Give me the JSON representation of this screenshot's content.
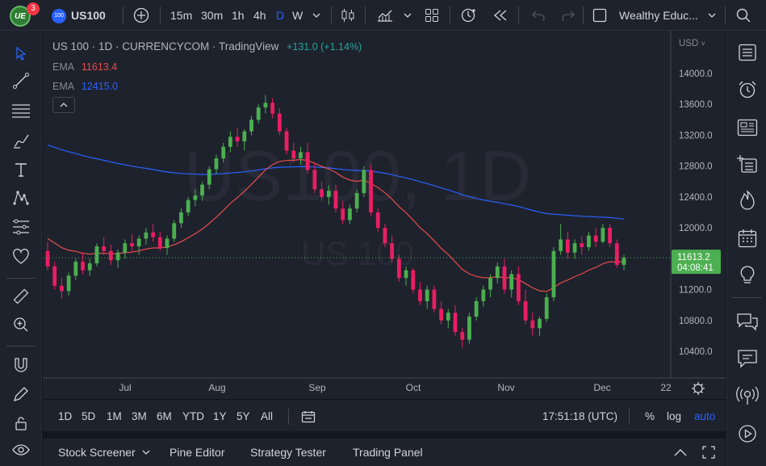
{
  "header": {
    "logo_text": "UE",
    "notification_count": "3",
    "symbol_badge": "100",
    "symbol": "US100",
    "intervals": [
      "15m",
      "30m",
      "1h",
      "4h",
      "D",
      "W"
    ],
    "active_interval": "D",
    "layout_name": "Wealthy Educ..."
  },
  "legend": {
    "title": "US 100 · 1D · CURRENCYCOM · TradingView",
    "change": "+131.0 (+1.14%)",
    "ema1_label": "EMA",
    "ema1_value": "11613.4",
    "ema2_label": "EMA",
    "ema2_value": "12415.0"
  },
  "watermark": {
    "big": "US100, 1D",
    "small": "US 100"
  },
  "price_axis": {
    "currency": "USD",
    "ticks": [
      "14000.0",
      "13600.0",
      "13200.0",
      "12800.0",
      "12400.0",
      "12000.0",
      "11200.0",
      "10800.0",
      "10400.0"
    ],
    "current_price": "11613.2",
    "countdown": "04:08:41"
  },
  "time_axis": {
    "ticks": [
      "Jul",
      "Aug",
      "Sep",
      "Oct",
      "Nov",
      "Dec",
      "22"
    ]
  },
  "bottom_bar": {
    "ranges": [
      "1D",
      "5D",
      "1M",
      "3M",
      "6M",
      "YTD",
      "1Y",
      "5Y",
      "All"
    ],
    "clock": "17:51:18 (UTC)",
    "percent": "%",
    "log": "log",
    "auto": "auto"
  },
  "panel_tabs": [
    "Stock Screener",
    "Pine Editor",
    "Strategy Tester",
    "Trading Panel"
  ],
  "colors": {
    "up": "#26a69a",
    "down": "#ef5350",
    "up_candle": "#4caf50",
    "down_candle": "#e91e63",
    "ema_fast": "#e84c4c",
    "ema_slow": "#2962ff",
    "accent": "#2962ff",
    "price_label": "#4caf50"
  },
  "chart_data": {
    "type": "candlestick",
    "symbol": "US 100",
    "interval": "1D",
    "ylim": [
      10000,
      14400
    ],
    "ema_fast_last": 11613.4,
    "ema_slow_last": 12415.0,
    "last_price": 11613.2,
    "candles": [
      [
        11700,
        11820,
        11450,
        11500
      ],
      [
        11500,
        11560,
        11200,
        11250
      ],
      [
        11250,
        11350,
        11080,
        11180
      ],
      [
        11180,
        11420,
        11120,
        11380
      ],
      [
        11380,
        11600,
        11320,
        11560
      ],
      [
        11560,
        11680,
        11400,
        11450
      ],
      [
        11450,
        11600,
        11380,
        11540
      ],
      [
        11540,
        11800,
        11500,
        11760
      ],
      [
        11760,
        11880,
        11650,
        11700
      ],
      [
        11700,
        11780,
        11520,
        11580
      ],
      [
        11580,
        11720,
        11480,
        11680
      ],
      [
        11680,
        11850,
        11600,
        11800
      ],
      [
        11800,
        11920,
        11700,
        11760
      ],
      [
        11760,
        11900,
        11650,
        11860
      ],
      [
        11860,
        12000,
        11780,
        11940
      ],
      [
        11940,
        12050,
        11820,
        11880
      ],
      [
        11880,
        11950,
        11700,
        11740
      ],
      [
        11740,
        11900,
        11650,
        11860
      ],
      [
        11860,
        12100,
        11820,
        12060
      ],
      [
        12060,
        12250,
        12000,
        12200
      ],
      [
        12200,
        12400,
        12150,
        12360
      ],
      [
        12360,
        12500,
        12280,
        12420
      ],
      [
        12420,
        12600,
        12350,
        12560
      ],
      [
        12560,
        12800,
        12500,
        12760
      ],
      [
        12760,
        12950,
        12700,
        12900
      ],
      [
        12900,
        13100,
        12850,
        13050
      ],
      [
        13050,
        13250,
        12980,
        13180
      ],
      [
        13180,
        13300,
        13050,
        13120
      ],
      [
        13120,
        13280,
        13000,
        13250
      ],
      [
        13250,
        13450,
        13200,
        13400
      ],
      [
        13400,
        13600,
        13350,
        13560
      ],
      [
        13560,
        13720,
        13480,
        13620
      ],
      [
        13620,
        13680,
        13420,
        13480
      ],
      [
        13480,
        13550,
        13200,
        13250
      ],
      [
        13250,
        13300,
        12950,
        13000
      ],
      [
        13000,
        13100,
        12850,
        12900
      ],
      [
        12900,
        13050,
        12820,
        12980
      ],
      [
        12980,
        13100,
        12700,
        12750
      ],
      [
        12750,
        12850,
        12450,
        12500
      ],
      [
        12500,
        12600,
        12350,
        12400
      ],
      [
        12400,
        12550,
        12300,
        12480
      ],
      [
        12480,
        12560,
        12200,
        12250
      ],
      [
        12250,
        12350,
        12050,
        12100
      ],
      [
        12100,
        12300,
        12050,
        12250
      ],
      [
        12250,
        12500,
        12200,
        12450
      ],
      [
        12450,
        12800,
        12400,
        12750
      ],
      [
        12750,
        12820,
        12150,
        12200
      ],
      [
        12200,
        12250,
        11950,
        12000
      ],
      [
        12000,
        12050,
        11750,
        11800
      ],
      [
        11800,
        11900,
        11550,
        11600
      ],
      [
        11600,
        11650,
        11300,
        11350
      ],
      [
        11350,
        11500,
        11250,
        11450
      ],
      [
        11450,
        11480,
        11150,
        11200
      ],
      [
        11200,
        11300,
        11000,
        11050
      ],
      [
        11050,
        11250,
        10950,
        11200
      ],
      [
        11200,
        11250,
        10900,
        10950
      ],
      [
        10950,
        11050,
        10750,
        10800
      ],
      [
        10800,
        10950,
        10700,
        10900
      ],
      [
        10900,
        11000,
        10600,
        10650
      ],
      [
        10650,
        10700,
        10450,
        10550
      ],
      [
        10550,
        10900,
        10500,
        10850
      ],
      [
        10850,
        11100,
        10800,
        11050
      ],
      [
        11050,
        11250,
        10980,
        11200
      ],
      [
        11200,
        11400,
        11100,
        11350
      ],
      [
        11350,
        11550,
        11280,
        11500
      ],
      [
        11500,
        11600,
        11150,
        11200
      ],
      [
        11200,
        11450,
        11100,
        11400
      ],
      [
        11400,
        11500,
        11000,
        11050
      ],
      [
        11050,
        11200,
        10750,
        10800
      ],
      [
        10800,
        10900,
        10600,
        10700
      ],
      [
        10700,
        10850,
        10600,
        10820
      ],
      [
        10820,
        11150,
        10780,
        11100
      ],
      [
        11100,
        11750,
        11050,
        11700
      ],
      [
        11700,
        12050,
        11650,
        11850
      ],
      [
        11850,
        11950,
        11600,
        11680
      ],
      [
        11680,
        11850,
        11600,
        11800
      ],
      [
        11800,
        11900,
        11650,
        11750
      ],
      [
        11750,
        11950,
        11700,
        11900
      ],
      [
        11900,
        12000,
        11750,
        11820
      ],
      [
        11820,
        12050,
        11800,
        12000
      ],
      [
        12000,
        12050,
        11750,
        11800
      ],
      [
        11800,
        11850,
        11480,
        11520
      ],
      [
        11520,
        11650,
        11450,
        11613
      ]
    ]
  }
}
